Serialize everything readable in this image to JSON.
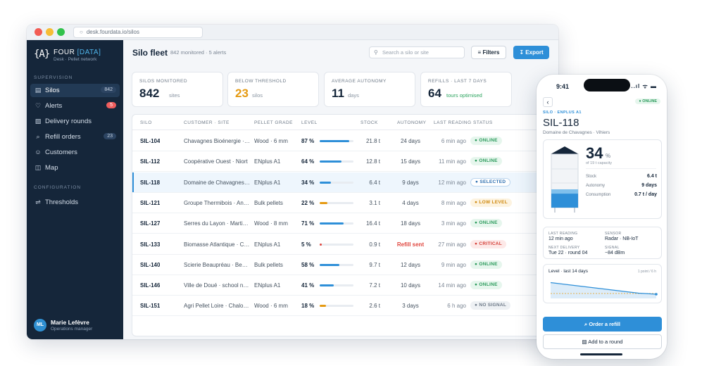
{
  "browser": {
    "url": "desk.fourdata.io/silos"
  },
  "brand": {
    "logo": "{A}",
    "name": "FOUR",
    "name_accent": "[DATA]",
    "sub": "Desk · Pellet network"
  },
  "sidebar": {
    "section_supervision": "SUPERVISION",
    "section_configuration": "CONFIGURATION",
    "items": [
      {
        "label": "Silos",
        "icon": "silo-icon",
        "badge": "842"
      },
      {
        "label": "Alerts",
        "icon": "bell-icon",
        "badge": "5"
      },
      {
        "label": "Delivery rounds",
        "icon": "truck-icon",
        "badge": ""
      },
      {
        "label": "Refill orders",
        "icon": "cart-icon",
        "badge": "23"
      },
      {
        "label": "Customers",
        "icon": "users-icon",
        "badge": ""
      },
      {
        "label": "Map",
        "icon": "map-icon",
        "badge": ""
      },
      {
        "label": "Thresholds",
        "icon": "sliders-icon",
        "badge": ""
      }
    ],
    "user": {
      "initials": "ML",
      "name": "Marie Lefèvre",
      "role": "Operations manager"
    }
  },
  "header": {
    "title": "Silo fleet",
    "subtitle": "842 monitored · 5 alerts",
    "search_placeholder": "Search a silo or site",
    "filters_label": "Filters",
    "export_label": "Export"
  },
  "kpis": [
    {
      "label": "SILOS MONITORED",
      "value": "842",
      "unit": "sites"
    },
    {
      "label": "BELOW THRESHOLD",
      "value": "23",
      "unit": "silos"
    },
    {
      "label": "AVERAGE AUTONOMY",
      "value": "11",
      "unit": "days"
    },
    {
      "label": "REFILLS · LAST 7 DAYS",
      "value": "64",
      "unit": "tours optimised"
    }
  ],
  "table": {
    "headers": [
      "SILO",
      "CUSTOMER · SITE",
      "PELLET GRADE",
      "LEVEL",
      "STOCK",
      "AUTONOMY",
      "LAST READING",
      "STATUS"
    ],
    "rows": [
      {
        "id": "SIL-104",
        "site": "Chavagnes Bioénergie · Les Mauges",
        "grade": "Wood · 6 mm",
        "level": "87 %",
        "level_frac": 0.87,
        "stock": "21.8 t",
        "autonomy": "24 days",
        "reading": "6 min ago",
        "status": "ONLINE",
        "status_kind": "online"
      },
      {
        "id": "SIL-112",
        "site": "Coopérative Ouest · Niort",
        "grade": "ENplus A1",
        "level": "64 %",
        "level_frac": 0.64,
        "stock": "12.8 t",
        "autonomy": "15 days",
        "reading": "11 min ago",
        "status": "ONLINE",
        "status_kind": "online"
      },
      {
        "id": "SIL-118",
        "site": "Domaine de Chavagnes · Vihiers",
        "grade": "ENplus A1",
        "level": "34 %",
        "level_frac": 0.34,
        "stock": "6.4 t",
        "autonomy": "9 days",
        "reading": "12 min ago",
        "status": "SELECTED",
        "status_kind": "selected"
      },
      {
        "id": "SIL-121",
        "site": "Groupe Thermibois · Angers",
        "grade": "Bulk pellets",
        "level": "22 %",
        "level_frac": 0.22,
        "stock": "3.1 t",
        "autonomy": "4 days",
        "reading": "8 min ago",
        "status": "LOW LEVEL",
        "status_kind": "low"
      },
      {
        "id": "SIL-127",
        "site": "Serres du Layon · Martigné",
        "grade": "Wood · 8 mm",
        "level": "71 %",
        "level_frac": 0.71,
        "stock": "16.4 t",
        "autonomy": "18 days",
        "reading": "3 min ago",
        "status": "ONLINE",
        "status_kind": "online"
      },
      {
        "id": "SIL-133",
        "site": "Biomasse Atlantique · Cholet",
        "grade": "ENplus A1",
        "level": "5 %",
        "level_frac": 0.05,
        "stock": "0.9 t",
        "autonomy": "Refill sent",
        "reading": "27 min ago",
        "status": "CRITICAL",
        "status_kind": "critical"
      },
      {
        "id": "SIL-140",
        "site": "Scierie Beaupréau · Beaupréau",
        "grade": "Bulk pellets",
        "level": "58 %",
        "level_frac": 0.58,
        "stock": "9.7 t",
        "autonomy": "12 days",
        "reading": "9 min ago",
        "status": "ONLINE",
        "status_kind": "online"
      },
      {
        "id": "SIL-146",
        "site": "Ville de Doué · school network",
        "grade": "ENplus A1",
        "level": "41 %",
        "level_frac": 0.41,
        "stock": "7.2 t",
        "autonomy": "10 days",
        "reading": "14 min ago",
        "status": "ONLINE",
        "status_kind": "online"
      },
      {
        "id": "SIL-151",
        "site": "Agri Pellet Loire · Chalonnes",
        "grade": "Wood · 6 mm",
        "level": "18 %",
        "level_frac": 0.18,
        "stock": "2.6 t",
        "autonomy": "3 days",
        "reading": "6 h ago",
        "status": "NO SIGNAL",
        "status_kind": "nosignal"
      }
    ]
  },
  "phone": {
    "time": "9:41",
    "status_icons": "..ıl ᯤ ▬",
    "online": "ONLINE",
    "crumb": "SILO · ENPLUS A1",
    "title": "SIL-118",
    "subtitle": "Domaine de Chavagnes · Vihiers",
    "level_value": "34",
    "level_unit": "%",
    "level_frac": 0.34,
    "capacity": "of 19 t capacity",
    "stats": [
      {
        "k": "Stock",
        "v": "6.4 t"
      },
      {
        "k": "Autonomy",
        "v": "9 days"
      },
      {
        "k": "Consumption",
        "v": "0.7 t / day"
      }
    ],
    "last_reading_label": "LAST READING",
    "last_reading": "12 min ago",
    "sensor_label": "SENSOR",
    "sensor": "Radar · NB-IoT",
    "next_delivery_label": "NEXT DELIVERY",
    "next_delivery": "Tue 22 · round 04",
    "signal_label": "SIGNAL",
    "signal": "−84 dBm",
    "chart_title": "Level · last 14 days",
    "chart_meta": "1 point / 6 h",
    "trend": [
      0.45,
      0.44,
      0.43,
      0.42,
      0.41,
      0.4,
      0.39,
      0.38,
      0.37,
      0.36,
      0.35,
      0.345,
      0.34
    ],
    "order_label": "Order a refill",
    "round_label": "Add to a round"
  },
  "colors": {
    "accent": "#2e8fd8",
    "sidebar": "#15263a",
    "warn": "#e59a12",
    "critical": "#e0473f",
    "ok": "#2a9a5a"
  }
}
